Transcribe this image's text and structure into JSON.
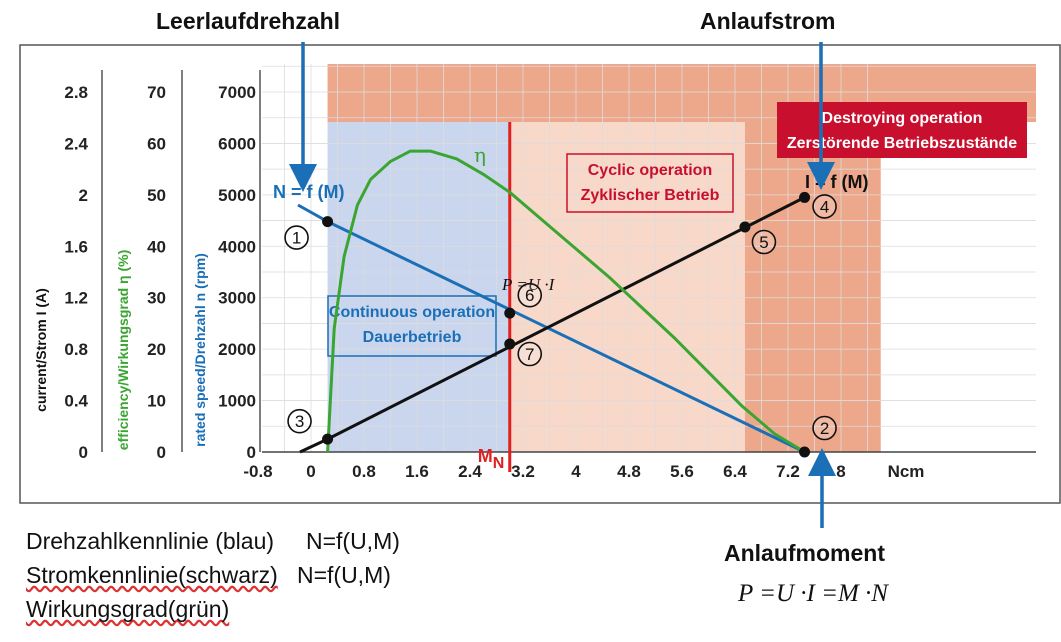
{
  "chart_data": {
    "type": "line",
    "x_ticks": [
      "-0.8",
      "0",
      "0.8",
      "1.6",
      "2.4",
      "3.2",
      "4",
      "4.8",
      "5.6",
      "6.4",
      "7.2",
      "8"
    ],
    "x_unit": "Ncm",
    "xlim": [
      -0.8,
      8.6
    ],
    "axes": [
      {
        "name": "speed",
        "label": "rated speed/Drehzahl n (rpm)",
        "ticks": [
          "0",
          "1000",
          "2000",
          "3000",
          "4000",
          "5000",
          "6000",
          "7000"
        ],
        "range": [
          0,
          7500
        ],
        "color": "#1a6fb7"
      },
      {
        "name": "efficiency",
        "label": "efficiency/Wirkungsgrad η (%)",
        "ticks": [
          "0",
          "10",
          "20",
          "30",
          "40",
          "50",
          "60",
          "70"
        ],
        "range": [
          0,
          75
        ],
        "color": "#3aa531"
      },
      {
        "name": "current",
        "label": "current/Strom I (A)",
        "ticks": [
          "0",
          "0.4",
          "0.8",
          "1.2",
          "1.6",
          "2",
          "2.4",
          "2.8"
        ],
        "range": [
          0,
          3.0
        ],
        "color": "#111111"
      }
    ],
    "series": [
      {
        "name": "N = f (M)",
        "axis": "speed",
        "color": "#1a6fb7",
        "x": [
          0.25,
          7.45
        ],
        "y": [
          4480,
          0
        ]
      },
      {
        "name": "I = f (M)",
        "axis": "current",
        "color": "#111111",
        "x": [
          0.25,
          7.45
        ],
        "y": [
          0.1,
          1.98
        ]
      },
      {
        "name": "η",
        "axis": "efficiency",
        "color": "#3aa531",
        "x": [
          0.25,
          0.35,
          0.5,
          0.7,
          0.9,
          1.2,
          1.5,
          1.8,
          2.2,
          2.6,
          3.0,
          3.5,
          4.0,
          4.5,
          5.0,
          5.5,
          6.0,
          6.5,
          7.0,
          7.45
        ],
        "y": [
          0,
          24,
          38,
          48,
          53,
          56.5,
          58.5,
          58.5,
          57,
          54,
          50.5,
          45,
          39.5,
          34,
          28,
          22,
          15.5,
          9,
          3.5,
          0
        ]
      }
    ],
    "points": [
      {
        "label": "1",
        "x": 0.25,
        "y": 4480,
        "axis": "speed"
      },
      {
        "label": "2",
        "x": 7.45,
        "y": 0,
        "axis": "speed"
      },
      {
        "label": "3",
        "x": 0.25,
        "y": 0.1,
        "axis": "current"
      },
      {
        "label": "4",
        "x": 7.45,
        "y": 1.98,
        "axis": "current"
      },
      {
        "label": "5",
        "x": 6.55,
        "y": 1.75,
        "axis": "current"
      },
      {
        "label": "6",
        "x": 3.0,
        "y": 2700,
        "axis": "speed"
      },
      {
        "label": "7",
        "x": 3.0,
        "y": 0.84,
        "axis": "current"
      }
    ],
    "regions": [
      {
        "label_lines": [
          "Continuous operation",
          "Dauerbetrieb"
        ],
        "x": [
          0.25,
          3.0
        ],
        "color": "#c9d6ee"
      },
      {
        "label_lines": [
          "Cyclic operation",
          "Zyklischer Betrieb"
        ],
        "x": [
          3.0,
          6.55
        ],
        "color": "#f8d8c9"
      },
      {
        "label_lines": [
          "Destroying operation",
          "Zerstörende Betriebszustände"
        ],
        "x": [
          6.55,
          8.6
        ],
        "color": "#eda88c"
      }
    ],
    "rated_torque": {
      "label": "M",
      "subscript": "N",
      "x": 3.0,
      "color": "#e02020"
    },
    "annotations": [
      "P =U ·I"
    ],
    "speed_label": "N = f (M)",
    "current_label": "I = f (M)",
    "eta_label": "η"
  },
  "callouts": {
    "leerlauf": "Leerlaufdrehzahl",
    "anlaufstrom": "Anlaufstrom",
    "anlaufmoment": "Anlaufmoment"
  },
  "legend": {
    "line1": "Drehzahlkennlinie (blau)     N=f(U,M)",
    "line2_a": "Stromkennlinie(schwarz)",
    "line2_b": "   N=f(U,M)",
    "line3": "Wirkungsgrad(grün)"
  },
  "formula": "P =U ·I =M ·N"
}
